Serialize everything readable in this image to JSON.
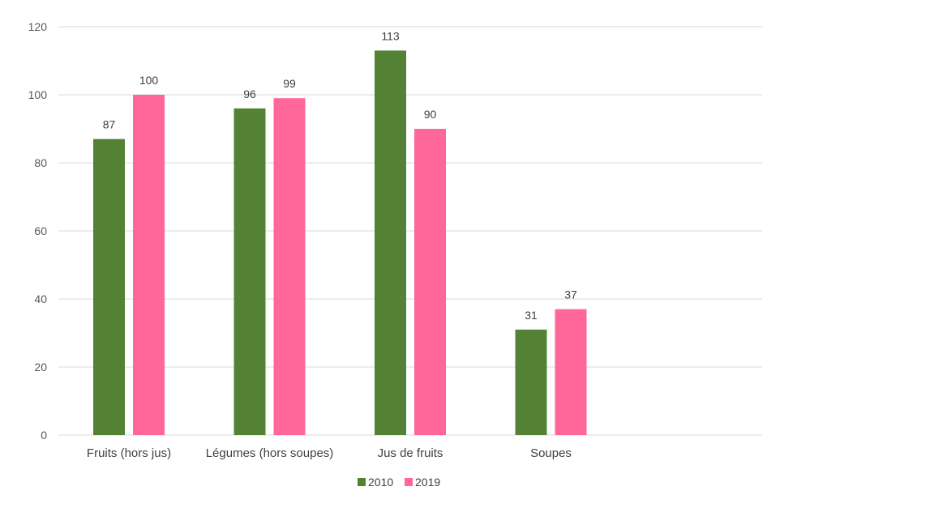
{
  "chart_data": {
    "type": "bar",
    "categories": [
      "Fruits (hors jus)",
      "Légumes (hors soupes)",
      "Jus de fruits",
      "Soupes"
    ],
    "series": [
      {
        "name": "2010",
        "color": "#548235",
        "values": [
          87,
          96,
          113,
          31
        ]
      },
      {
        "name": "2019",
        "color": "#FF6699",
        "values": [
          100,
          99,
          90,
          37
        ]
      }
    ],
    "ylim": [
      0,
      120
    ],
    "yticks": [
      0,
      20,
      40,
      60,
      80,
      100,
      120
    ],
    "grid": true,
    "legend": "bottom",
    "data_labels": true
  }
}
